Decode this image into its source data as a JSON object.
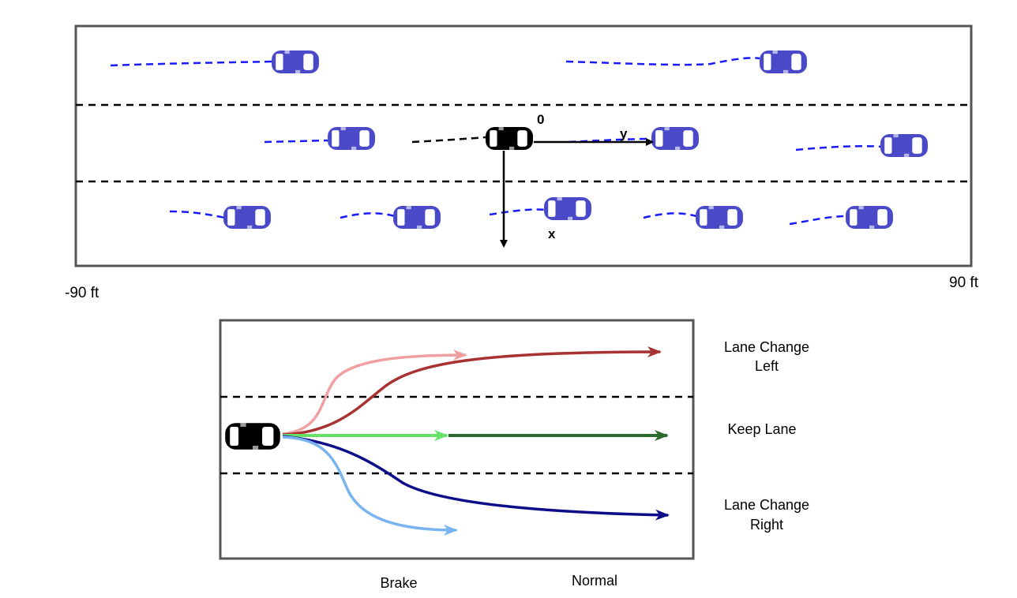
{
  "top_panel": {
    "origin_label": "0",
    "y_axis_label": "y",
    "x_axis_label": "x",
    "left_extent_label": "-90 ft",
    "right_extent_label": "90 ft"
  },
  "bottom_panel": {
    "maneuvers": [
      {
        "line1": "Lane Change",
        "line2": "Left"
      },
      {
        "line1": "Keep Lane",
        "line2": ""
      },
      {
        "line1": "Lane Change",
        "line2": "Right"
      }
    ],
    "modes": {
      "brake": "Brake",
      "normal": "Normal"
    }
  },
  "colors": {
    "surrounding_vehicle": "#4a4ac8",
    "ego_vehicle": "#000000",
    "history_trail": "#1a1aff",
    "lane_change_left_brake": "#f0a0a0",
    "lane_change_left_normal": "#a83232",
    "keep_lane_brake": "#66e066",
    "keep_lane_normal": "#2f6b2f",
    "lane_change_right_brake": "#7ab4f0",
    "lane_change_right_normal": "#0d0d8a"
  }
}
